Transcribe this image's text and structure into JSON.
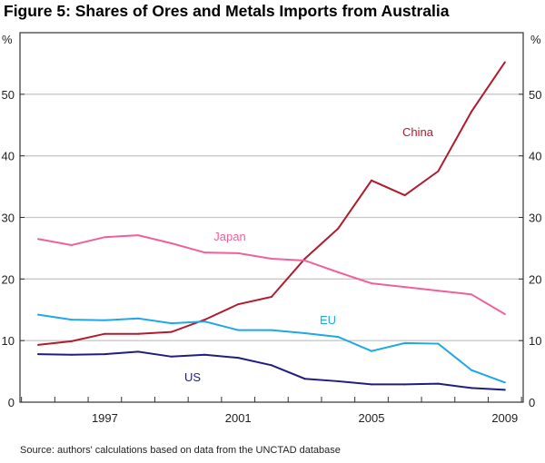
{
  "chart_data": {
    "type": "line",
    "title": "Figure 5: Shares of Ores and Metals Imports from Australia",
    "ylabel_left": "%",
    "ylabel_right": "%",
    "ylim": [
      0,
      60
    ],
    "yticks": [
      0,
      10,
      20,
      30,
      40,
      50
    ],
    "x": [
      1995,
      1996,
      1997,
      1998,
      1999,
      2000,
      2001,
      2002,
      2003,
      2004,
      2005,
      2006,
      2007,
      2008,
      2009
    ],
    "xtick_labels": [
      "1997",
      "2001",
      "2005",
      "2009"
    ],
    "grid": true,
    "series": [
      {
        "name": "China",
        "color": "#b01c2e",
        "values": [
          9.3,
          9.9,
          11.1,
          11.1,
          11.4,
          13.4,
          15.9,
          17.1,
          23.3,
          28.2,
          36.0,
          33.6,
          37.5,
          47.2,
          55.2
        ]
      },
      {
        "name": "Japan",
        "color": "#f0609e",
        "values": [
          26.5,
          25.5,
          26.8,
          27.1,
          25.8,
          24.3,
          24.2,
          23.3,
          23.0,
          21.1,
          19.3,
          18.7,
          18.1,
          17.5,
          14.3
        ]
      },
      {
        "name": "EU",
        "color": "#1ea8e8",
        "values": [
          14.2,
          13.4,
          13.3,
          13.6,
          12.8,
          13.1,
          11.7,
          11.7,
          11.2,
          10.6,
          8.3,
          9.6,
          9.5,
          5.2,
          3.2
        ]
      },
      {
        "name": "US",
        "color": "#1e1e80",
        "values": [
          7.8,
          7.7,
          7.8,
          8.2,
          7.4,
          7.7,
          7.2,
          6.0,
          3.8,
          3.4,
          2.9,
          2.9,
          3.0,
          2.3,
          2.0
        ]
      }
    ],
    "source": "Source:  authors' calculations based on data from the UNCTAD database"
  }
}
